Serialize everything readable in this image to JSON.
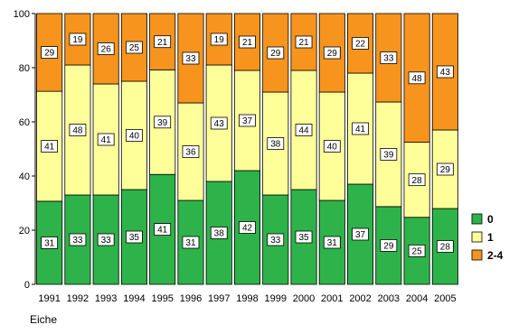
{
  "chart_data": {
    "type": "bar",
    "stacked": true,
    "categories": [
      "1991",
      "1992",
      "1993",
      "1994",
      "1995",
      "1996",
      "1997",
      "1998",
      "1999",
      "2000",
      "2001",
      "2002",
      "2003",
      "2004",
      "2005"
    ],
    "series": [
      {
        "name": "0",
        "color": "#2db34a",
        "values": [
          31,
          33,
          33,
          35,
          41,
          31,
          38,
          42,
          33,
          35,
          31,
          37,
          29,
          25,
          28
        ]
      },
      {
        "name": "1",
        "color": "#ffff99",
        "values": [
          41,
          48,
          41,
          40,
          39,
          36,
          43,
          37,
          38,
          44,
          40,
          41,
          39,
          28,
          29
        ]
      },
      {
        "name": "2-4",
        "color": "#f7941d",
        "values": [
          29,
          19,
          26,
          25,
          21,
          33,
          19,
          21,
          29,
          21,
          29,
          22,
          33,
          48,
          43
        ]
      }
    ],
    "ylim": [
      0,
      100
    ],
    "yticks": [
      0,
      20,
      40,
      60,
      80,
      100
    ],
    "legend_position": "right",
    "grid": false
  },
  "caption": "Eiche"
}
